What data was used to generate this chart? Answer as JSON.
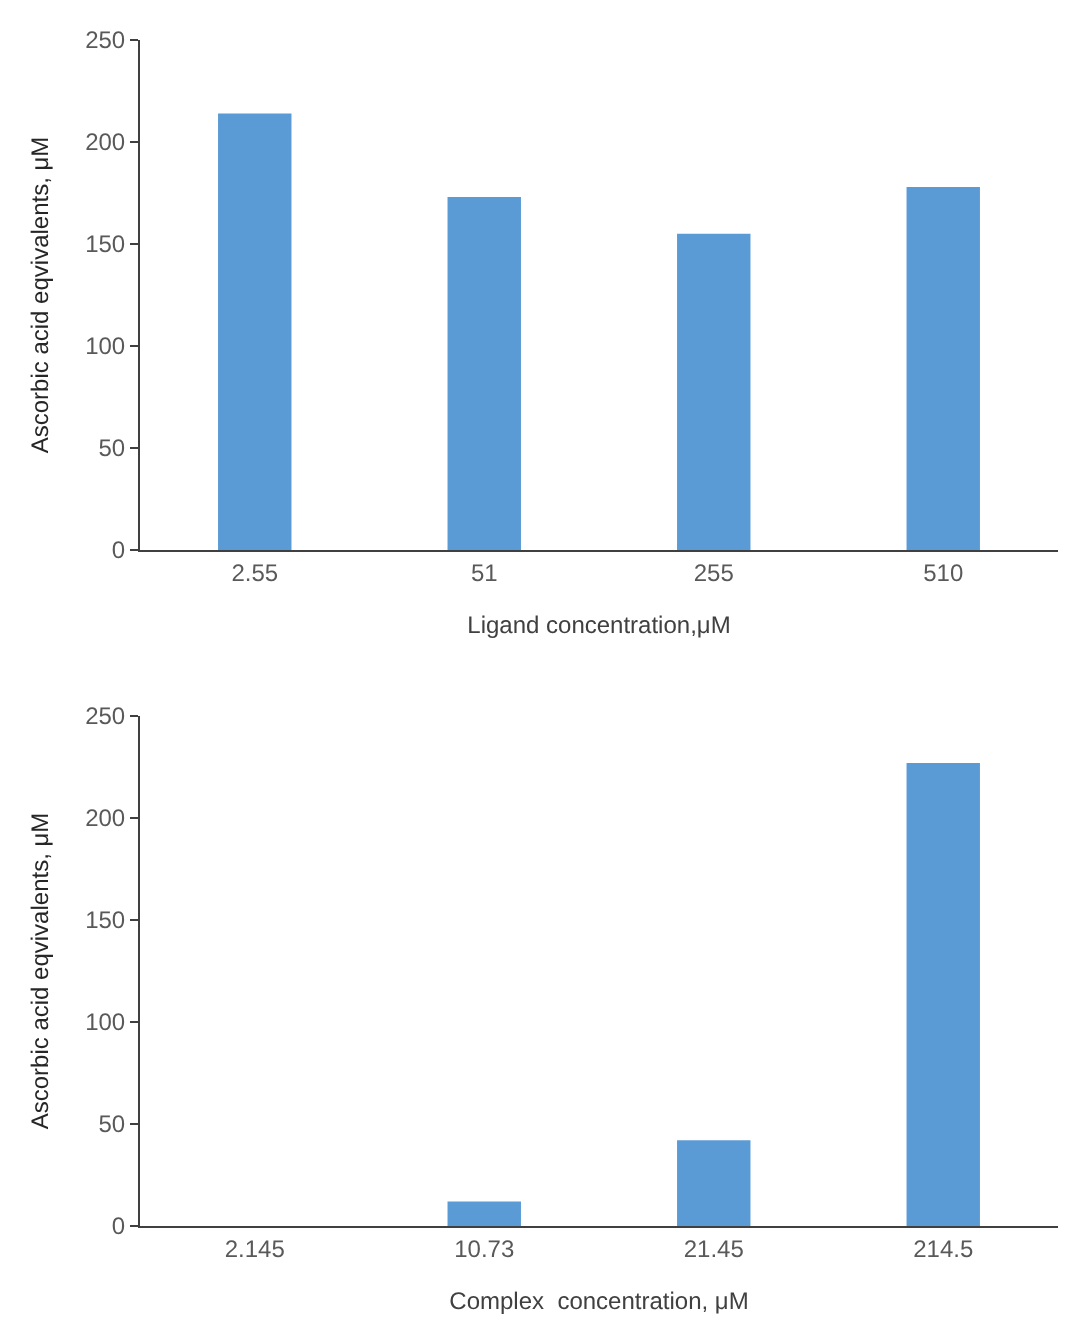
{
  "chart_data": [
    {
      "type": "bar",
      "xlabel": "Ligand concentration,μM",
      "ylabel": "Ascorbic acid eqvivalents, μM",
      "categories": [
        "2.55",
        "51",
        "255",
        "510"
      ],
      "values": [
        214,
        173,
        155,
        178
      ],
      "color": "#5b9bd5",
      "ylim": [
        0,
        250
      ],
      "yticks": [
        0,
        50,
        100,
        150,
        200,
        250
      ],
      "grid": false
    },
    {
      "type": "bar",
      "xlabel": "Complex  concentration, μM",
      "ylabel": "Ascorbic acid eqvivalents, μM",
      "categories": [
        "2.145",
        "10.73",
        "21.45",
        "214.5"
      ],
      "values": [
        0,
        12,
        42,
        227
      ],
      "color": "#5b9bd5",
      "ylim": [
        0,
        250
      ],
      "yticks": [
        0,
        50,
        100,
        150,
        200,
        250
      ],
      "grid": false
    }
  ]
}
